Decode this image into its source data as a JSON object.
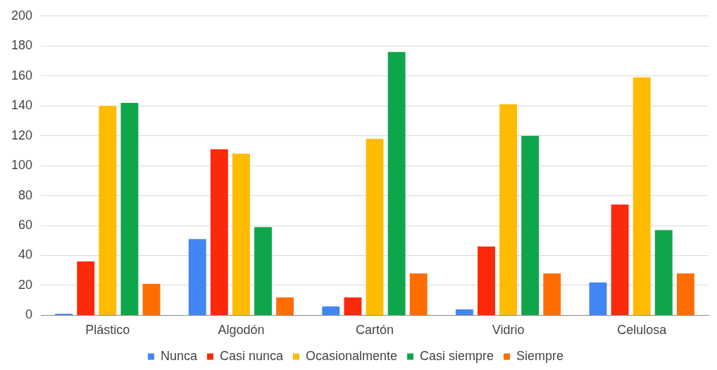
{
  "chart_data": {
    "type": "bar",
    "categories": [
      "Plástico",
      "Algodón",
      "Cartón",
      "Vidrio",
      "Celulosa"
    ],
    "series": [
      {
        "name": "Nunca",
        "color": "#4285f4",
        "values": [
          1,
          51,
          6,
          4,
          22
        ]
      },
      {
        "name": "Casi nunca",
        "color": "#fa2a0a",
        "values": [
          36,
          111,
          12,
          46,
          74
        ]
      },
      {
        "name": "Ocasionalmente",
        "color": "#ffbb00",
        "values": [
          140,
          108,
          118,
          141,
          159
        ]
      },
      {
        "name": "Casi siempre",
        "color": "#0ea64b",
        "values": [
          142,
          59,
          176,
          120,
          57
        ]
      },
      {
        "name": "Siempre",
        "color": "#ff6d01",
        "values": [
          21,
          12,
          28,
          28,
          28
        ]
      }
    ],
    "ylim": [
      0,
      200
    ],
    "yticks": [
      0,
      20,
      40,
      60,
      80,
      100,
      120,
      140,
      160,
      180,
      200
    ],
    "grid": "y",
    "legend": "bottom"
  }
}
